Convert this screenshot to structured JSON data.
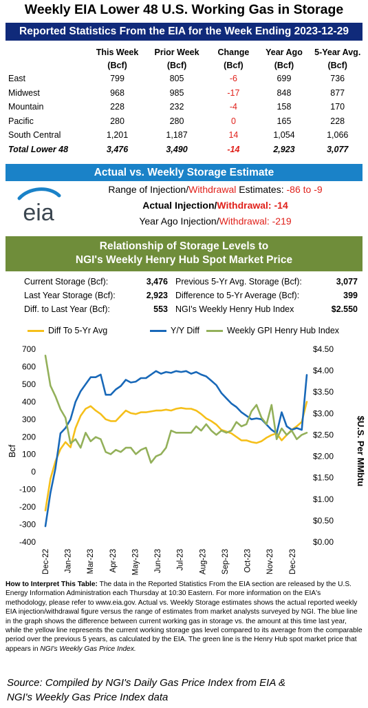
{
  "header": {
    "title": "Weekly EIA Lower 48 U.S. Working Gas in Storage",
    "subtitle": "Reported Statistics From the EIA for the Week Ending 2023-12-29"
  },
  "stats": {
    "columns": [
      {
        "line1": "This Week",
        "line2": "(Bcf)"
      },
      {
        "line1": "Prior Week",
        "line2": "(Bcf)"
      },
      {
        "line1": "Change",
        "line2": "(Bcf)"
      },
      {
        "line1": "Year Ago",
        "line2": "(Bcf)"
      },
      {
        "line1": "5-Year Avg.",
        "line2": "(Bcf)"
      }
    ],
    "rows": [
      {
        "region": "East",
        "this_week": "799",
        "prior_week": "805",
        "change": "-6",
        "year_ago": "699",
        "five_yr": "736"
      },
      {
        "region": "Midwest",
        "this_week": "968",
        "prior_week": "985",
        "change": "-17",
        "year_ago": "848",
        "five_yr": "877"
      },
      {
        "region": "Mountain",
        "this_week": "228",
        "prior_week": "232",
        "change": "-4",
        "year_ago": "158",
        "five_yr": "170"
      },
      {
        "region": "Pacific",
        "this_week": "280",
        "prior_week": "280",
        "change": "0",
        "year_ago": "165",
        "five_yr": "228"
      },
      {
        "region": "South Central",
        "this_week": "1,201",
        "prior_week": "1,187",
        "change": "14",
        "year_ago": "1,054",
        "five_yr": "1,066"
      },
      {
        "region": "Total Lower 48",
        "this_week": "3,476",
        "prior_week": "3,490",
        "change": "-14",
        "year_ago": "2,923",
        "five_yr": "3,077"
      }
    ]
  },
  "estimate": {
    "bar_label": "Actual vs. Weekly Storage Estimate",
    "logo_text": "eia",
    "line1_a": "Range of Injection/",
    "line1_b": "Withdrawal",
    "line1_c": " Estimates: ",
    "line1_value": "-86 to -9",
    "line2_a": "Actual Injection/",
    "line2_b": "Withdrawal:",
    "line2_value": " -14",
    "line3_a": "Year Ago Injection/",
    "line3_b": "Withdrawal:",
    "line3_value": " -219"
  },
  "relationship": {
    "bar_line1": "Relationship of Storage Levels to",
    "bar_line2": "NGI's Weekly Henry Hub Spot Market Price",
    "left": [
      {
        "label": "Current Storage (Bcf):",
        "value": "3,476"
      },
      {
        "label": "Last Year Storage (Bcf):",
        "value": "2,923"
      },
      {
        "label": "Diff. to Last Year (Bcf):",
        "value": "553"
      }
    ],
    "right": [
      {
        "label": "Previous 5-Yr Avg. Storage (Bcf):",
        "value": "3,077"
      },
      {
        "label": "Difference to 5-Yr Average (Bcf):",
        "value": "399"
      },
      {
        "label": "NGI's Weekly Henry Hub Index",
        "value": "$2.550"
      }
    ]
  },
  "colors": {
    "navy": "#102a7a",
    "blue_bar": "#1a82c8",
    "green_bar": "#6f8d3a",
    "yellow": "#f5bf1a",
    "blue": "#1868b8",
    "green": "#93b05a",
    "red": "#e0201a"
  },
  "chart_data": {
    "type": "line",
    "legend_position": "top",
    "grid": false,
    "ylabel_left": "Bcf",
    "ylabel_right": "$U.S. Per MMbtu",
    "ylim_left": [
      -400,
      700
    ],
    "ylim_right": [
      0.0,
      4.5
    ],
    "yticks_left": [
      "700",
      "600",
      "500",
      "400",
      "300",
      "200",
      "100",
      "0",
      "-100",
      "-200",
      "-300",
      "-400"
    ],
    "yticks_right": [
      "$4.50",
      "$4.00",
      "$3.50",
      "$3.00",
      "$2.50",
      "$2.00",
      "$1.50",
      "$1.00",
      "$0.50",
      "$0.00"
    ],
    "xtick_labels": [
      "Dec-22",
      "Jan-23",
      "Mar-23",
      "Apr-23",
      "May-23",
      "Jun-23",
      "Jul-23",
      "Aug-23",
      "Sep-23",
      "Oct-23",
      "Nov-23",
      "Dec-23"
    ],
    "weeks": 53,
    "series": [
      {
        "name": "Diff To 5-Yr Avg",
        "axis": "left",
        "color": "#f5bf1a",
        "values": [
          -220,
          -40,
          60,
          130,
          170,
          140,
          250,
          320,
          360,
          375,
          350,
          330,
          300,
          290,
          290,
          320,
          350,
          335,
          330,
          340,
          340,
          345,
          350,
          350,
          355,
          350,
          360,
          365,
          360,
          360,
          350,
          330,
          305,
          290,
          270,
          240,
          230,
          220,
          200,
          180,
          180,
          170,
          165,
          175,
          195,
          210,
          220,
          180,
          210,
          240,
          260,
          285,
          400
        ]
      },
      {
        "name": "Y/Y Diff",
        "axis": "left",
        "color": "#1868b8",
        "values": [
          -310,
          -120,
          20,
          220,
          250,
          300,
          400,
          460,
          500,
          540,
          540,
          555,
          440,
          440,
          470,
          490,
          525,
          510,
          515,
          535,
          535,
          555,
          575,
          560,
          570,
          565,
          575,
          570,
          575,
          560,
          570,
          555,
          545,
          520,
          495,
          450,
          420,
          390,
          370,
          340,
          320,
          300,
          305,
          300,
          270,
          240,
          220,
          340,
          260,
          240,
          250,
          240,
          553
        ]
      },
      {
        "name": "Weekly GPI Henry Hub Index",
        "axis": "right",
        "color": "#93b05a",
        "values": [
          4.35,
          3.65,
          3.4,
          3.1,
          2.9,
          2.3,
          2.4,
          2.2,
          2.55,
          2.35,
          2.45,
          2.4,
          2.1,
          2.05,
          2.15,
          2.1,
          2.2,
          2.2,
          2.05,
          2.15,
          2.2,
          1.85,
          2.0,
          2.05,
          2.2,
          2.6,
          2.55,
          2.55,
          2.55,
          2.55,
          2.7,
          2.6,
          2.75,
          2.6,
          2.5,
          2.6,
          2.55,
          2.6,
          2.8,
          2.7,
          2.75,
          3.05,
          3.2,
          2.9,
          2.75,
          3.2,
          2.4,
          2.65,
          2.5,
          2.6,
          2.4,
          2.5,
          2.55
        ]
      }
    ]
  },
  "note": {
    "heading": "How to Interpret This Table:",
    "body": " The data in the Reported Statistics From the EIA  section are released by the U.S. Energy Information Administration each Thursday at 10:30 Eastern. For more information on the EIA's methodology, please refer to www.eia.gov. Actual vs. Weekly Storage estimates shows the actual reported weekly EIA injection/withdrawal figure versus the range of estimates from market analysts surveyed by NGI. The blue line in the graph shows the difference between current working gas in storage vs. the amount at this time last year, while the yellow line represents the current working storage gas level compared to its average from the comparable period over the previous 5 years, as calculated by the EIA.  The green line is the Henry Hub spot market price that appears in ",
    "tail": "NGI's Weekly Gas Price Index."
  },
  "source": {
    "line1": "Source: Compiled by NGI's Daily Gas Price Index from EIA &",
    "line2": "NGI's Weekly Gas Price Index data"
  }
}
